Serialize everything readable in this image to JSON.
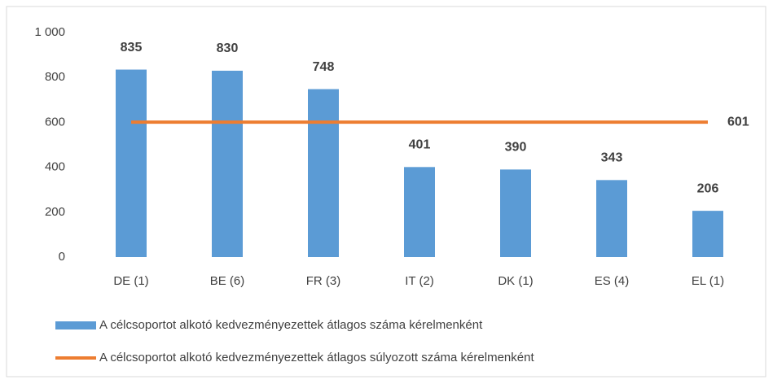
{
  "chart_data": {
    "type": "bar",
    "categories": [
      "DE (1)",
      "BE (6)",
      "FR (3)",
      "IT (2)",
      "DK (1)",
      "ES (4)",
      "EL (1)"
    ],
    "series": [
      {
        "name": "A célcsoportot alkotó kedvezményezettek átlagos száma kérelmenként",
        "type": "bar",
        "color": "#5b9bd5",
        "values": [
          835,
          830,
          748,
          401,
          390,
          343,
          206
        ]
      },
      {
        "name": "A célcsoportot alkotó kedvezményezettek átlagos súlyozott száma kérelmenként",
        "type": "line",
        "color": "#ed7d31",
        "values": [
          601,
          601,
          601,
          601,
          601,
          601,
          601
        ]
      }
    ],
    "ylim": [
      0,
      1000
    ],
    "yticks": [
      0,
      200,
      400,
      600,
      800,
      {
        "value": 1000,
        "label": "1 000"
      }
    ],
    "grid": false
  }
}
